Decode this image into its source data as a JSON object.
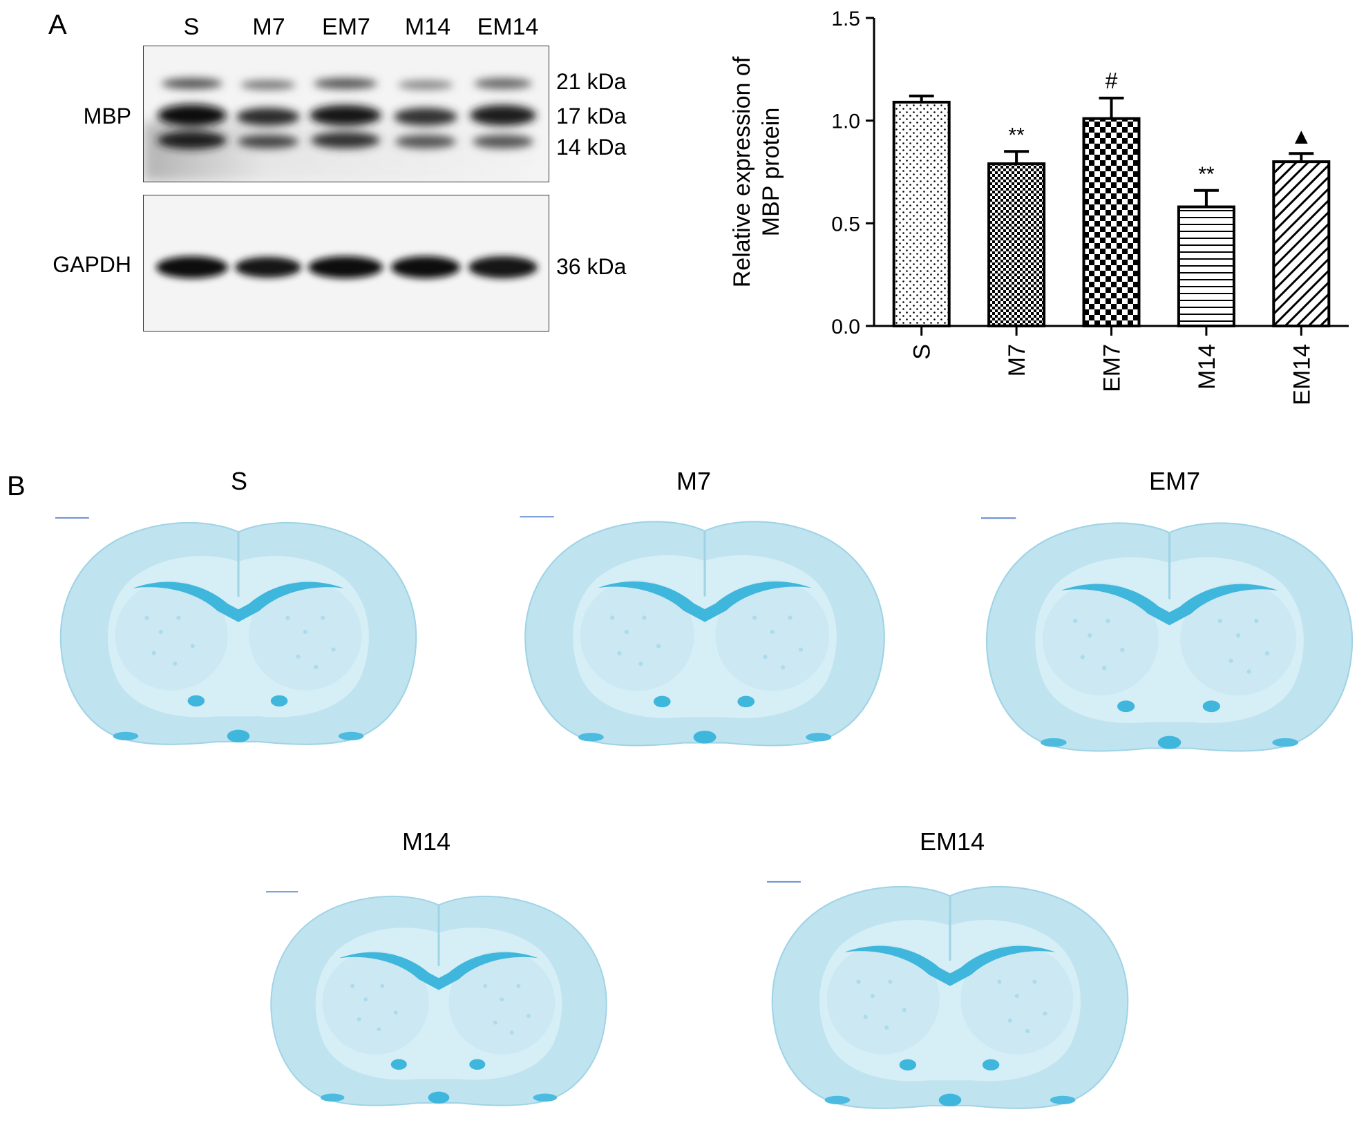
{
  "panelA": {
    "letter": "A",
    "lanes": [
      "S",
      "M7",
      "EM7",
      "M14",
      "EM14"
    ],
    "mbp_label": "MBP",
    "gapdh_label": "GAPDH",
    "mbp_bands": [
      "21 kDa",
      "17 kDa",
      "14 kDa"
    ],
    "gapdh_band": "36 kDa"
  },
  "chart_data": {
    "type": "bar",
    "categories": [
      "S",
      "M7",
      "EM7",
      "M14",
      "EM14"
    ],
    "values": [
      1.09,
      0.79,
      1.01,
      0.58,
      0.8
    ],
    "errors": [
      0.03,
      0.06,
      0.1,
      0.08,
      0.04
    ],
    "significance": [
      "",
      "**",
      "#",
      "**",
      "▲"
    ],
    "ylabel_line1": "Relative expression of",
    "ylabel_line2": "MBP protein",
    "ylim": [
      0,
      1.5
    ],
    "yticks": [
      0.0,
      0.5,
      1.0,
      1.5
    ],
    "ytick_labels": [
      "0.0",
      "0.5",
      "1.0",
      "1.5"
    ],
    "patterns": [
      "dots",
      "small-checker",
      "large-checker",
      "horizontal-lines",
      "diagonal-lines"
    ]
  },
  "panelB": {
    "letter": "B",
    "sections": [
      "S",
      "M7",
      "EM7",
      "M14",
      "EM14"
    ],
    "stain_color": "#3fb6dc"
  }
}
